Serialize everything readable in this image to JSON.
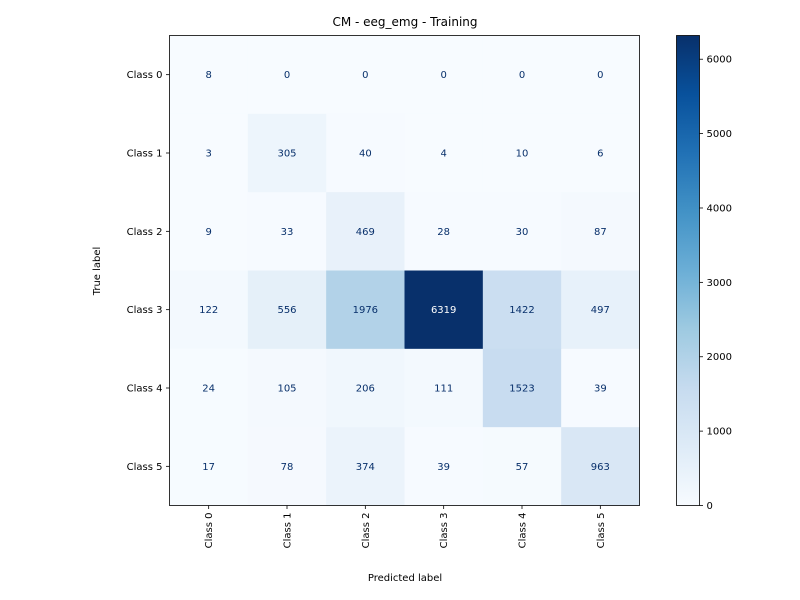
{
  "chart_data": {
    "type": "heatmap",
    "title": "CM - eeg_emg - Training",
    "xlabel": "Predicted label",
    "ylabel": "True label",
    "x_categories": [
      "Class 0",
      "Class 1",
      "Class 2",
      "Class 3",
      "Class 4",
      "Class 5"
    ],
    "y_categories": [
      "Class 0",
      "Class 1",
      "Class 2",
      "Class 3",
      "Class 4",
      "Class 5"
    ],
    "values": [
      [
        8,
        0,
        0,
        0,
        0,
        0
      ],
      [
        3,
        305,
        40,
        4,
        10,
        6
      ],
      [
        9,
        33,
        469,
        28,
        30,
        87
      ],
      [
        122,
        556,
        1976,
        6319,
        1422,
        497
      ],
      [
        24,
        105,
        206,
        111,
        1523,
        39
      ],
      [
        17,
        78,
        374,
        39,
        57,
        963
      ]
    ],
    "colormap": "Blues",
    "colorbar": {
      "range": [
        0,
        6319
      ],
      "ticks": [
        0,
        1000,
        2000,
        3000,
        4000,
        5000,
        6000
      ]
    },
    "text_colors": {
      "light_cell": "#08306b",
      "dark_cell": "#ffffff"
    },
    "grid": false
  }
}
